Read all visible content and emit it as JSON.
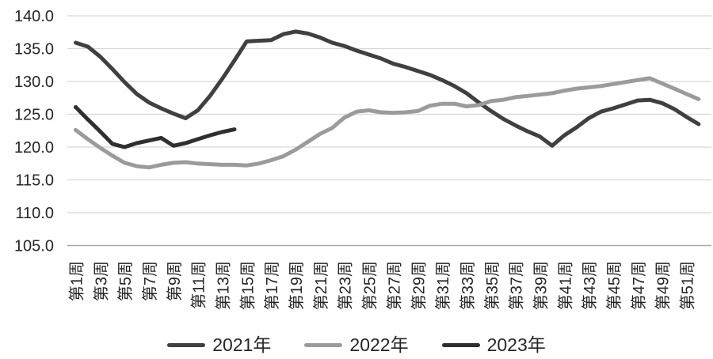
{
  "chart_data": {
    "type": "line",
    "title": "",
    "xlabel": "",
    "ylabel": "",
    "x_unit": "week",
    "ylim": [
      105,
      140
    ],
    "grid": true,
    "legend_position": "bottom",
    "colors": {
      "grid": "#d8d8d8",
      "axis": "#a8a8a8",
      "text": "#262626"
    },
    "y_ticks": [
      {
        "value": 140,
        "label": "140.0"
      },
      {
        "value": 135,
        "label": "135.0"
      },
      {
        "value": 130,
        "label": "130.0"
      },
      {
        "value": 125,
        "label": "125.0"
      },
      {
        "value": 120,
        "label": "120.0"
      },
      {
        "value": 115,
        "label": "115.0"
      },
      {
        "value": 110,
        "label": "110.0"
      },
      {
        "value": 105,
        "label": "105.0"
      }
    ],
    "x_ticks": [
      {
        "week": 1,
        "label": "第1周"
      },
      {
        "week": 3,
        "label": "第3周"
      },
      {
        "week": 5,
        "label": "第5周"
      },
      {
        "week": 7,
        "label": "第7周"
      },
      {
        "week": 9,
        "label": "第9周"
      },
      {
        "week": 11,
        "label": "第11周"
      },
      {
        "week": 13,
        "label": "第13周"
      },
      {
        "week": 15,
        "label": "第15周"
      },
      {
        "week": 17,
        "label": "第17周"
      },
      {
        "week": 19,
        "label": "第19周"
      },
      {
        "week": 21,
        "label": "第21周"
      },
      {
        "week": 23,
        "label": "第23周"
      },
      {
        "week": 25,
        "label": "第25周"
      },
      {
        "week": 27,
        "label": "第27周"
      },
      {
        "week": 29,
        "label": "第29周"
      },
      {
        "week": 31,
        "label": "第31周"
      },
      {
        "week": 33,
        "label": "第33周"
      },
      {
        "week": 35,
        "label": "第35周"
      },
      {
        "week": 37,
        "label": "第37周"
      },
      {
        "week": 39,
        "label": "第39周"
      },
      {
        "week": 41,
        "label": "第41周"
      },
      {
        "week": 43,
        "label": "第43周"
      },
      {
        "week": 45,
        "label": "第45周"
      },
      {
        "week": 47,
        "label": "第47周"
      },
      {
        "week": 49,
        "label": "第49周"
      },
      {
        "week": 51,
        "label": "第51周"
      }
    ],
    "series": [
      {
        "name": "2021年",
        "color": "#404040",
        "start_week": 1,
        "values": [
          135.9,
          135.3,
          133.8,
          131.9,
          129.9,
          128.1,
          126.8,
          125.9,
          125.1,
          124.4,
          125.6,
          127.8,
          130.4,
          133.2,
          136.1,
          136.2,
          136.3,
          137.2,
          137.6,
          137.3,
          136.7,
          135.9,
          135.4,
          134.7,
          134.1,
          133.5,
          132.7,
          132.2,
          131.6,
          131.0,
          130.2,
          129.3,
          128.2,
          126.8,
          125.5,
          124.3,
          123.3,
          122.4,
          121.6,
          120.2,
          121.8,
          123.0,
          124.4,
          125.4,
          125.9,
          126.5,
          127.1,
          127.2,
          126.7,
          125.8,
          124.6,
          123.5
        ]
      },
      {
        "name": "2022年",
        "color": "#9b9b9b",
        "start_week": 1,
        "values": [
          122.6,
          121.2,
          119.9,
          118.7,
          117.6,
          117.1,
          116.9,
          117.3,
          117.6,
          117.7,
          117.5,
          117.4,
          117.3,
          117.3,
          117.2,
          117.5,
          118.0,
          118.6,
          119.6,
          120.8,
          122.0,
          122.9,
          124.5,
          125.4,
          125.6,
          125.3,
          125.2,
          125.3,
          125.5,
          126.3,
          126.6,
          126.6,
          126.2,
          126.4,
          127.0,
          127.2,
          127.6,
          127.8,
          128.0,
          128.2,
          128.6,
          128.9,
          129.1,
          129.3,
          129.6,
          129.9,
          130.2,
          130.5,
          129.7,
          128.9,
          128.1,
          127.3
        ]
      },
      {
        "name": "2023年",
        "color": "#2f2f2f",
        "start_week": 1,
        "values": [
          126.1,
          124.2,
          122.4,
          120.5,
          120.0,
          120.6,
          121.0,
          121.4,
          120.2,
          120.6,
          121.2,
          121.8,
          122.3,
          122.7
        ]
      }
    ]
  },
  "legend": {
    "items": [
      {
        "label": "2021年"
      },
      {
        "label": "2022年"
      },
      {
        "label": "2023年"
      }
    ]
  }
}
